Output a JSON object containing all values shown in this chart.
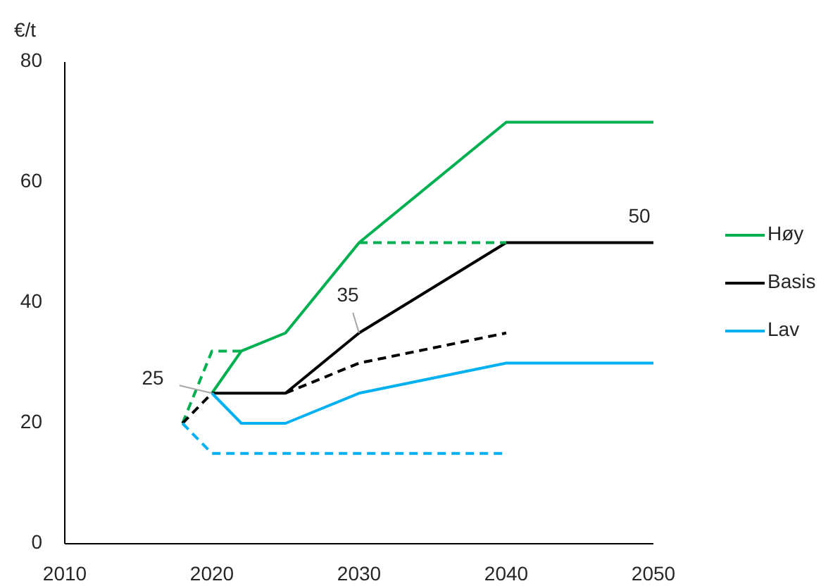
{
  "chart_data": {
    "type": "line",
    "ylabel": "€/t",
    "xlim": [
      2010,
      2050
    ],
    "xticks": [
      2010,
      2020,
      2030,
      2040,
      2050
    ],
    "ylim": [
      0,
      80
    ],
    "yticks": [
      0,
      20,
      40,
      60,
      80
    ],
    "grid": false,
    "legend": "right",
    "annotations": [
      {
        "text": "25",
        "x": 2020,
        "y": 25
      },
      {
        "text": "35",
        "x": 2030,
        "y": 35
      },
      {
        "text": "50",
        "x": 2050,
        "y": 50
      }
    ],
    "series": [
      {
        "name": "Høy",
        "color": "#00b050",
        "line_style": "solid",
        "x": [
          2020,
          2022,
          2025,
          2030,
          2040,
          2050
        ],
        "values": [
          25,
          32,
          35,
          50,
          70,
          70
        ]
      },
      {
        "name": "Basis",
        "color": "#000000",
        "line_style": "solid",
        "x": [
          2020,
          2025,
          2030,
          2040,
          2050
        ],
        "values": [
          25,
          25,
          35,
          50,
          50
        ]
      },
      {
        "name": "Lav",
        "color": "#00b0f0",
        "line_style": "solid",
        "x": [
          2020,
          2022,
          2025,
          2030,
          2040,
          2050
        ],
        "values": [
          25,
          20,
          20,
          25,
          30,
          30
        ]
      },
      {
        "color": "#00b050",
        "line_style": "dashed",
        "x": [
          2018,
          2020,
          2022
        ],
        "values": [
          20,
          32,
          32
        ]
      },
      {
        "color": "#00b050",
        "line_style": "dashed",
        "x": [
          2030,
          2040
        ],
        "values": [
          50,
          50
        ]
      },
      {
        "color": "#000000",
        "line_style": "dashed",
        "x": [
          2018,
          2020
        ],
        "values": [
          20,
          25
        ]
      },
      {
        "color": "#000000",
        "line_style": "dashed",
        "x": [
          2025,
          2030,
          2040
        ],
        "values": [
          25,
          30,
          35
        ]
      },
      {
        "color": "#00b0f0",
        "line_style": "dashed",
        "x": [
          2018,
          2020,
          2040
        ],
        "values": [
          20,
          15,
          15
        ]
      }
    ]
  }
}
